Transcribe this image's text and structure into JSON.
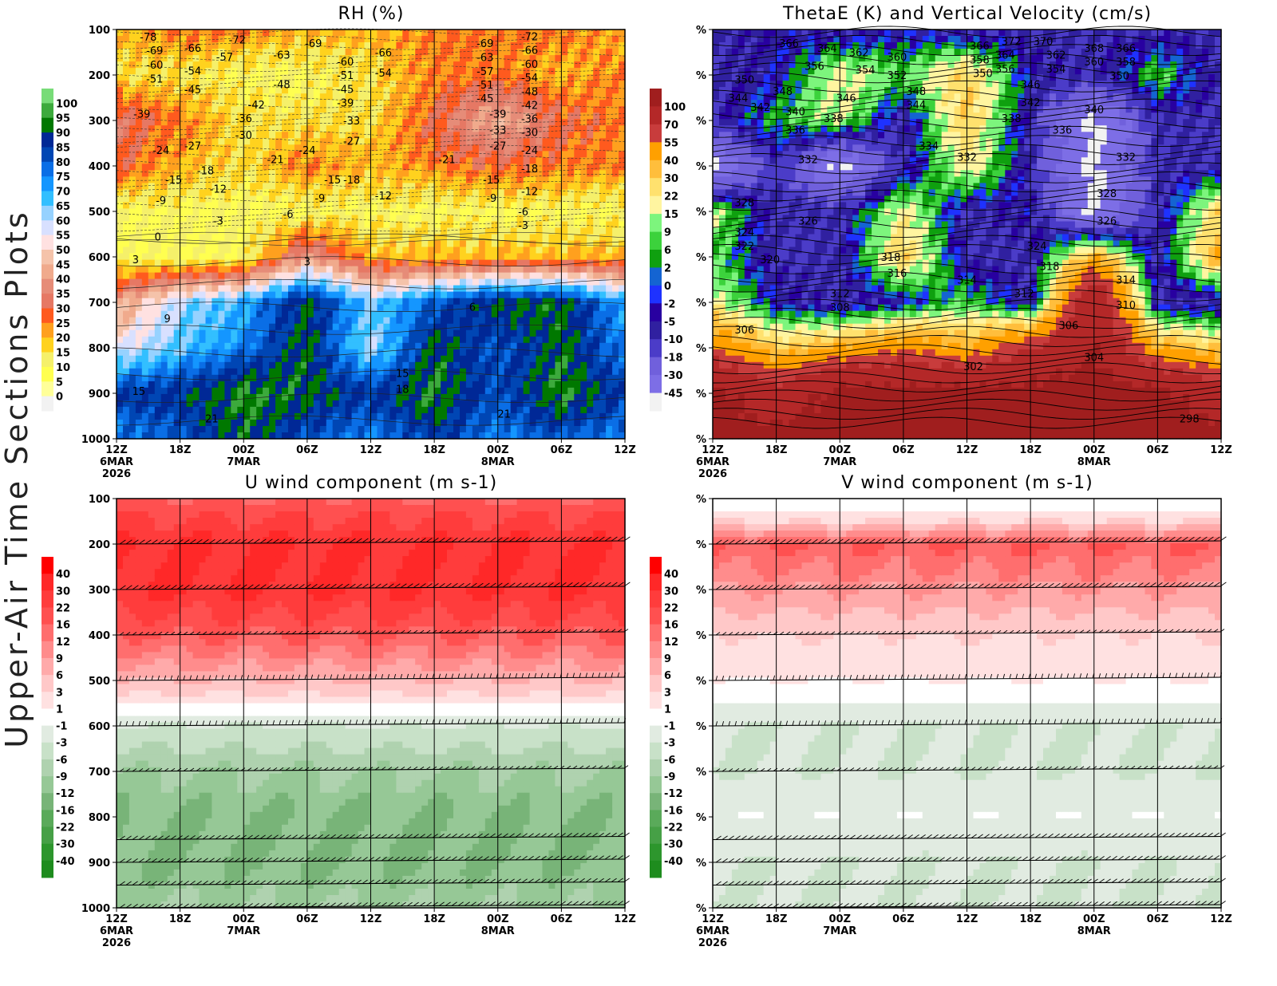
{
  "side_title": "Upper-Air Time Sections Plots",
  "time_ticks": [
    "12Z",
    "18Z",
    "00Z",
    "06Z",
    "12Z",
    "18Z",
    "00Z",
    "06Z",
    "12Z"
  ],
  "date_labels": [
    {
      "index": 0,
      "lines": [
        "6MAR",
        "2026"
      ]
    },
    {
      "index": 2,
      "lines": [
        "7MAR"
      ]
    },
    {
      "index": 6,
      "lines": [
        "8MAR"
      ]
    }
  ],
  "chart_data": [
    {
      "id": "rh",
      "type": "heatmap",
      "title": "RH (%)",
      "ylabel_ticks": [
        "100",
        "200",
        "300",
        "400",
        "500",
        "600",
        "700",
        "800",
        "900",
        "1000"
      ],
      "pressure": [
        100,
        200,
        300,
        400,
        500,
        600,
        700,
        800,
        900,
        1000
      ],
      "values": [
        [
          20,
          25,
          25,
          20,
          20,
          25,
          25,
          25,
          20
        ],
        [
          15,
          15,
          10,
          10,
          15,
          25,
          25,
          20,
          25
        ],
        [
          35,
          25,
          15,
          15,
          15,
          30,
          45,
          30,
          25
        ],
        [
          30,
          20,
          15,
          25,
          20,
          25,
          30,
          25,
          25
        ],
        [
          10,
          10,
          10,
          10,
          10,
          10,
          10,
          10,
          10
        ],
        [
          10,
          10,
          10,
          40,
          20,
          20,
          20,
          20,
          20
        ],
        [
          40,
          60,
          70,
          92,
          65,
          80,
          92,
          92,
          70
        ],
        [
          55,
          65,
          75,
          92,
          60,
          92,
          80,
          92,
          75
        ],
        [
          85,
          87,
          95,
          92,
          85,
          95,
          82,
          95,
          85
        ],
        [
          75,
          80,
          92,
          80,
          75,
          85,
          75,
          80,
          75
        ]
      ],
      "levels": [
        0,
        5,
        10,
        15,
        20,
        25,
        30,
        35,
        40,
        45,
        50,
        55,
        60,
        65,
        70,
        75,
        80,
        85,
        90,
        95,
        100
      ],
      "colorbar_labels": [
        "100",
        "95",
        "90",
        "85",
        "80",
        "75",
        "70",
        "65",
        "60",
        "55",
        "50",
        "45",
        "40",
        "35",
        "30",
        "25",
        "20",
        "15",
        "10",
        "5",
        "0"
      ],
      "colors": [
        "#f2f2f2",
        "#ffff99",
        "#ffff50",
        "#f5f06a",
        "#ffd21e",
        "#ffa01e",
        "#ff5a1e",
        "#e67864",
        "#e68c78",
        "#f0aa8c",
        "#f5c3aa",
        "#ffe1e1",
        "#d8e0ff",
        "#96d2ff",
        "#32bfff",
        "#1496ff",
        "#0a6ee6",
        "#0046b4",
        "#002896",
        "#007800",
        "#3caa3c",
        "#78dc78"
      ],
      "contour_labels": [
        [
          0.5,
          100,
          "-78"
        ],
        [
          0.6,
          140,
          "-69"
        ],
        [
          0.6,
          172,
          "-60"
        ],
        [
          0.6,
          203,
          "-51"
        ],
        [
          1.2,
          140,
          "-66"
        ],
        [
          1.2,
          190,
          "-54"
        ],
        [
          1.7,
          160,
          "-57"
        ],
        [
          1.9,
          122,
          "-72"
        ],
        [
          2.6,
          155,
          "-63"
        ],
        [
          3.1,
          130,
          "-69"
        ],
        [
          2.6,
          220,
          "-48"
        ],
        [
          1.2,
          232,
          "-45"
        ],
        [
          2.2,
          265,
          "-42"
        ],
        [
          0.4,
          285,
          "-39"
        ],
        [
          2.0,
          295,
          "-36"
        ],
        [
          2.0,
          332,
          "-30"
        ],
        [
          1.2,
          355,
          "-27"
        ],
        [
          0.7,
          365,
          "-24"
        ],
        [
          2.5,
          385,
          "-21"
        ],
        [
          3.0,
          365,
          "-24"
        ],
        [
          1.4,
          410,
          "-18"
        ],
        [
          0.9,
          430,
          "-15"
        ],
        [
          1.6,
          450,
          "-12"
        ],
        [
          0.7,
          475,
          "-9"
        ],
        [
          1.6,
          520,
          "-3"
        ],
        [
          0.65,
          555,
          "0"
        ],
        [
          0.3,
          605,
          "3"
        ],
        [
          2.7,
          505,
          "-6"
        ],
        [
          3.0,
          610,
          "3"
        ],
        [
          0.8,
          735,
          "9"
        ],
        [
          0.35,
          895,
          "15"
        ],
        [
          1.5,
          955,
          "21"
        ],
        [
          3.6,
          170,
          "-60"
        ],
        [
          3.6,
          195,
          "-51"
        ],
        [
          3.6,
          225,
          "-45"
        ],
        [
          3.6,
          255,
          "-39"
        ],
        [
          3.7,
          300,
          "-33"
        ],
        [
          3.7,
          345,
          "-27"
        ],
        [
          3.4,
          430,
          "-15"
        ],
        [
          3.2,
          470,
          "-9"
        ],
        [
          4.2,
          150,
          "-66"
        ],
        [
          4.2,
          195,
          "-54"
        ],
        [
          4.2,
          465,
          "-12"
        ],
        [
          5.2,
          385,
          "-21"
        ],
        [
          5.8,
          130,
          "-69"
        ],
        [
          5.8,
          155,
          "-63"
        ],
        [
          5.8,
          175,
          "-57"
        ],
        [
          5.8,
          200,
          "-51"
        ],
        [
          5.8,
          230,
          "-45"
        ],
        [
          6.0,
          285,
          "-39"
        ],
        [
          6.0,
          320,
          "-33"
        ],
        [
          6.0,
          355,
          "-27"
        ],
        [
          5.9,
          430,
          "-15"
        ],
        [
          5.9,
          470,
          "-9"
        ],
        [
          6.5,
          115,
          "-72"
        ],
        [
          6.5,
          145,
          "-66"
        ],
        [
          6.5,
          170,
          "-60"
        ],
        [
          6.5,
          200,
          "-54"
        ],
        [
          6.5,
          225,
          "-48"
        ],
        [
          6.5,
          255,
          "-42"
        ],
        [
          6.5,
          285,
          "-36"
        ],
        [
          6.5,
          325,
          "-30"
        ],
        [
          6.5,
          365,
          "-24"
        ],
        [
          6.5,
          405,
          "-18"
        ],
        [
          6.5,
          455,
          "-12"
        ],
        [
          6.4,
          500,
          "-6"
        ],
        [
          6.4,
          530,
          "-3"
        ],
        [
          5.6,
          710,
          "6"
        ],
        [
          4.5,
          855,
          "15"
        ],
        [
          4.5,
          890,
          "18"
        ],
        [
          6.1,
          945,
          "21"
        ],
        [
          3.6,
          430,
          "-18"
        ]
      ]
    },
    {
      "id": "thetae",
      "type": "heatmap",
      "title": "ThetaE (K) and Vertical Velocity (cm/s)",
      "ylabel_ticks": [
        "%",
        "%",
        "%",
        "%",
        "%",
        "%",
        "%",
        "%",
        "%",
        "%"
      ],
      "pressure": [
        100,
        200,
        300,
        400,
        500,
        600,
        700,
        800,
        900,
        1000
      ],
      "values": [
        [
          -10,
          -5,
          -10,
          -5,
          -10,
          -10,
          -10,
          -10,
          -10
        ],
        [
          -10,
          -5,
          20,
          9,
          30,
          -5,
          -10,
          9,
          -10
        ],
        [
          -10,
          6,
          15,
          -10,
          30,
          -10,
          -50,
          -10,
          -10
        ],
        [
          -50,
          -10,
          -50,
          -10,
          22,
          -10,
          -50,
          -10,
          -10
        ],
        [
          15,
          -10,
          -10,
          20,
          -10,
          -5,
          -50,
          -10,
          30
        ],
        [
          9,
          -10,
          -10,
          30,
          -10,
          -10,
          40,
          -10,
          40
        ],
        [
          20,
          -5,
          -10,
          -5,
          9,
          -10,
          100,
          -10,
          -10
        ],
        [
          55,
          30,
          40,
          55,
          40,
          70,
          100,
          40,
          30
        ],
        [
          110,
          80,
          110,
          110,
          110,
          110,
          110,
          110,
          80
        ],
        [
          110,
          110,
          110,
          110,
          110,
          110,
          110,
          110,
          110
        ]
      ],
      "levels": [
        -45,
        -30,
        -18,
        -10,
        -5,
        -2,
        0,
        2,
        6,
        9,
        15,
        22,
        30,
        40,
        55,
        70,
        100
      ],
      "colorbar_labels": [
        "100",
        "70",
        "55",
        "40",
        "30",
        "22",
        "15",
        "9",
        "6",
        "2",
        "0",
        "-2",
        "-5",
        "-10",
        "-18",
        "-30",
        "-45"
      ],
      "colors": [
        "#f2f2f2",
        "#7d6ee6",
        "#7060dc",
        "#4b3cc8",
        "#3020a0",
        "#2800a0",
        "#1e32ff",
        "#1464d2",
        "#0fa00f",
        "#3cd23c",
        "#7df57d",
        "#fff5a0",
        "#ffe16e",
        "#ffbe3c",
        "#ffa000",
        "#c83c3c",
        "#b42828",
        "#a01e1e"
      ],
      "contour_labels": [
        [
          1.2,
          30,
          "366"
        ],
        [
          1.8,
          40,
          "364"
        ],
        [
          2.3,
          50,
          "362"
        ],
        [
          2.9,
          60,
          "360"
        ],
        [
          4.2,
          35,
          "366"
        ],
        [
          4.2,
          55,
          "358"
        ],
        [
          4.7,
          25,
          "372"
        ],
        [
          5.2,
          25,
          "370"
        ],
        [
          4.6,
          45,
          "364"
        ],
        [
          4.6,
          70,
          "356"
        ],
        [
          5.4,
          50,
          "362"
        ],
        [
          5.4,
          75,
          "354"
        ],
        [
          6.0,
          40,
          "368"
        ],
        [
          6.0,
          60,
          "360"
        ],
        [
          6.5,
          40,
          "366"
        ],
        [
          6.5,
          65,
          "358"
        ],
        [
          6.4,
          90,
          "350"
        ],
        [
          4.3,
          90,
          "350"
        ],
        [
          1.6,
          80,
          "356"
        ],
        [
          2.4,
          88,
          "354"
        ],
        [
          2.9,
          100,
          "352"
        ],
        [
          0.5,
          110,
          "350"
        ],
        [
          0.4,
          150,
          "344"
        ],
        [
          1.1,
          135,
          "348"
        ],
        [
          0.7,
          170,
          "342"
        ],
        [
          1.3,
          180,
          "340"
        ],
        [
          1.3,
          220,
          "336"
        ],
        [
          1.9,
          195,
          "338"
        ],
        [
          2.1,
          150,
          "346"
        ],
        [
          3.2,
          135,
          "348"
        ],
        [
          3.2,
          165,
          "344"
        ],
        [
          5.0,
          120,
          "346"
        ],
        [
          5.0,
          160,
          "342"
        ],
        [
          4.7,
          195,
          "338"
        ],
        [
          5.5,
          220,
          "336"
        ],
        [
          6.0,
          175,
          "340"
        ],
        [
          3.4,
          255,
          "334"
        ],
        [
          1.5,
          285,
          "332"
        ],
        [
          4.0,
          280,
          "332"
        ],
        [
          6.5,
          280,
          "332"
        ],
        [
          0.5,
          380,
          "328"
        ],
        [
          1.5,
          420,
          "326"
        ],
        [
          6.2,
          360,
          "328"
        ],
        [
          6.2,
          420,
          "326"
        ],
        [
          0.5,
          445,
          "324"
        ],
        [
          0.5,
          470,
          "322"
        ],
        [
          0.9,
          505,
          "320"
        ],
        [
          2.8,
          500,
          "318"
        ],
        [
          2.9,
          535,
          "316"
        ],
        [
          5.1,
          475,
          "324"
        ],
        [
          5.3,
          520,
          "318"
        ],
        [
          4.0,
          550,
          "314"
        ],
        [
          6.5,
          550,
          "314"
        ],
        [
          2.0,
          580,
          "312"
        ],
        [
          2.0,
          605,
          "308"
        ],
        [
          4.9,
          580,
          "312"
        ],
        [
          6.5,
          605,
          "310"
        ],
        [
          0.5,
          660,
          "306"
        ],
        [
          5.6,
          650,
          "306"
        ],
        [
          4.1,
          740,
          "302"
        ],
        [
          6.0,
          720,
          "304"
        ],
        [
          7.5,
          855,
          "298"
        ]
      ]
    },
    {
      "id": "u",
      "type": "heatmap",
      "title": "U wind component (m s-1)",
      "ylabel_ticks": [
        "100",
        "200",
        "300",
        "400",
        "500",
        "600",
        "700",
        "800",
        "900",
        "1000"
      ],
      "pressure": [
        100,
        200,
        300,
        400,
        500,
        550,
        600,
        700,
        800,
        900,
        1000
      ],
      "profile": [
        16,
        30,
        30,
        16,
        6,
        1,
        -3,
        -9,
        -12,
        -12,
        -9
      ],
      "levels": [
        -40,
        -30,
        -22,
        -16,
        -12,
        -9,
        -6,
        -3,
        -1,
        1,
        3,
        6,
        9,
        12,
        16,
        22,
        30,
        40
      ],
      "colorbar_labels": [
        "40",
        "30",
        "22",
        "16",
        "12",
        "9",
        "6",
        "3",
        "1",
        "-1",
        "-3",
        "-6",
        "-9",
        "-12",
        "-16",
        "-22",
        "-30",
        "-40"
      ],
      "colors": [
        "#1e8c1e",
        "#2d962d",
        "#46a046",
        "#5aaa5a",
        "#78b478",
        "#96c896",
        "#afd2af",
        "#c8e1c8",
        "#e1ebe1",
        "#ffffff",
        "#ffe1e1",
        "#ffc8c8",
        "#ffaaaa",
        "#ff8c8c",
        "#ff6e6e",
        "#ff5050",
        "#ff3c3c",
        "#ff2828",
        "#ff0000"
      ],
      "barb_levels": [
        200,
        300,
        400,
        500,
        600,
        700,
        850,
        900,
        950,
        1000
      ]
    },
    {
      "id": "v",
      "type": "heatmap",
      "title": "V wind component (m s-1)",
      "ylabel_ticks": [
        "%",
        "%",
        "%",
        "%",
        "%",
        "%",
        "%",
        "%",
        "%",
        "%"
      ],
      "pressure": [
        100,
        150,
        200,
        300,
        400,
        500,
        600,
        700,
        800,
        900,
        1000
      ],
      "profile": [
        -1,
        3,
        16,
        9,
        3,
        1,
        -3,
        -3,
        -1,
        -3,
        -3
      ],
      "levels": [
        -40,
        -30,
        -22,
        -16,
        -12,
        -9,
        -6,
        -3,
        -1,
        1,
        3,
        6,
        9,
        12,
        16,
        22,
        30,
        40
      ],
      "colorbar_labels": [
        "40",
        "30",
        "22",
        "16",
        "12",
        "9",
        "6",
        "3",
        "1",
        "-1",
        "-3",
        "-6",
        "-9",
        "-12",
        "-16",
        "-22",
        "-30",
        "-40"
      ],
      "colors": [
        "#1e8c1e",
        "#2d962d",
        "#46a046",
        "#5aaa5a",
        "#78b478",
        "#96c896",
        "#afd2af",
        "#c8e1c8",
        "#e1ebe1",
        "#ffffff",
        "#ffe1e1",
        "#ffc8c8",
        "#ffaaaa",
        "#ff8c8c",
        "#ff6e6e",
        "#ff5050",
        "#ff3c3c",
        "#ff2828",
        "#ff0000"
      ],
      "barb_levels": [
        200,
        300,
        400,
        500,
        600,
        700,
        850,
        900,
        950,
        1000
      ]
    }
  ]
}
